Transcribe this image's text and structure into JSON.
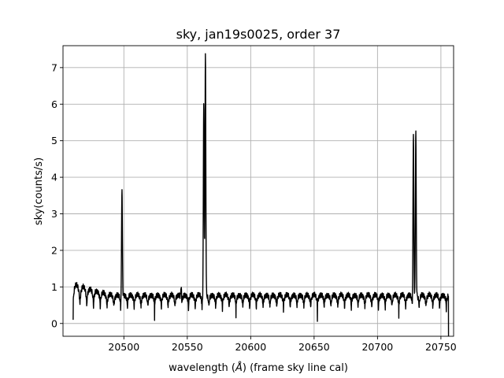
{
  "chart_data": {
    "type": "line",
    "title": "sky, jan19s0025, order 37",
    "xlabel_prefix": "wavelength (",
    "xlabel_unit": "Å",
    "xlabel_suffix": ") (frame sky line cal)",
    "ylabel": "sky(counts/s)",
    "xlim": [
      20452,
      20760
    ],
    "ylim": [
      -0.35,
      7.6
    ],
    "xticks": [
      20450,
      20500,
      20550,
      20600,
      20650,
      20700,
      20750
    ],
    "yticks": [
      0,
      1,
      2,
      3,
      4,
      5,
      6,
      7
    ],
    "grid": true,
    "series": [
      {
        "color": "#000000",
        "x_start": 20460,
        "x_end": 20756,
        "baseline": 0.55,
        "absorption_period": 5.35,
        "absorption_min": 0.05,
        "emission_lines": [
          {
            "x": 20498.5,
            "peak": 3.7
          },
          {
            "x": 20545.2,
            "peak": 1.08
          },
          {
            "x": 20563.0,
            "peak": 6.05
          },
          {
            "x": 20564.3,
            "peak": 7.25
          },
          {
            "x": 20728.3,
            "peak": 5.23
          },
          {
            "x": 20730.2,
            "peak": 5.2
          }
        ],
        "end_drop": -0.35
      }
    ]
  }
}
